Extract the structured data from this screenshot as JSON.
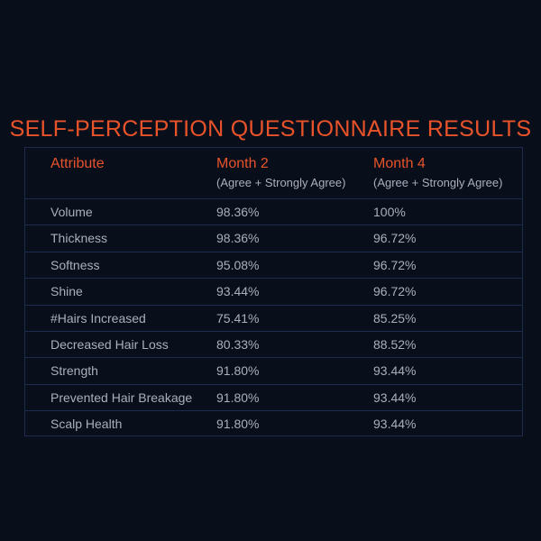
{
  "title": "SELF-PERCEPTION QUESTIONNAIRE RESULTS",
  "headers": [
    {
      "label": "Attribute",
      "sub": ""
    },
    {
      "label": "Month 2",
      "sub": "(Agree + Strongly Agree)"
    },
    {
      "label": "Month 4",
      "sub": "(Agree + Strongly Agree)"
    }
  ],
  "rows": [
    [
      "Volume",
      "98.36%",
      " 100%"
    ],
    [
      "Thickness",
      "98.36%",
      "96.72%"
    ],
    [
      "Softness",
      "95.08%",
      "96.72%"
    ],
    [
      "Shine",
      "93.44%",
      "96.72%"
    ],
    [
      "#Hairs Increased",
      "75.41%",
      "85.25%"
    ],
    [
      "Decreased Hair Loss",
      "80.33%",
      "88.52%"
    ],
    [
      "Strength",
      "91.80%",
      "93.44%"
    ],
    [
      "Prevented Hair Breakage",
      "91.80%",
      "93.44%"
    ],
    [
      "Scalp Health",
      "91.80%",
      "93.44%"
    ]
  ],
  "colors": {
    "accent": "#e8532a",
    "background": "#090e1b",
    "text": "#a9b0bc",
    "grid": "#1b2c4c"
  }
}
